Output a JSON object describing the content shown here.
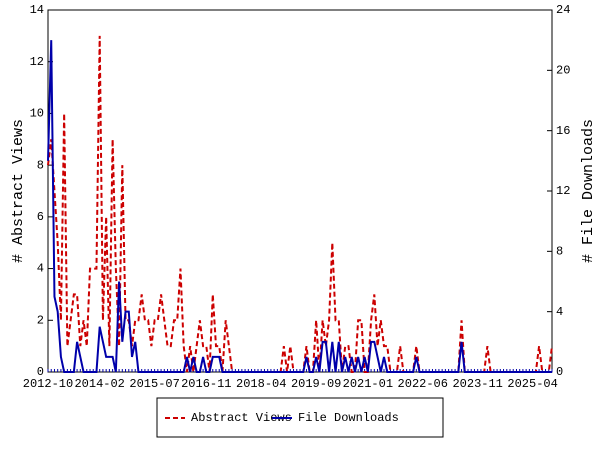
{
  "chart_data": {
    "type": "line",
    "y_label": "# Abstract Views",
    "y2_label": "# File Downloads",
    "categories": [
      "2012-10",
      null,
      null,
      null,
      null,
      null,
      null,
      null,
      null,
      null,
      null,
      null,
      null,
      null,
      null,
      null,
      "2014-02",
      null,
      null,
      null,
      null,
      null,
      null,
      null,
      null,
      null,
      null,
      null,
      null,
      null,
      null,
      null,
      null,
      "2015-07",
      null,
      null,
      null,
      null,
      null,
      null,
      null,
      null,
      null,
      null,
      null,
      null,
      null,
      null,
      null,
      "2016-11",
      null,
      null,
      null,
      null,
      null,
      null,
      null,
      null,
      null,
      null,
      null,
      null,
      null,
      null,
      null,
      null,
      "2018-04",
      null,
      null,
      null,
      null,
      null,
      null,
      null,
      null,
      null,
      null,
      null,
      null,
      null,
      null,
      null,
      null,
      "2019-09",
      null,
      null,
      null,
      null,
      null,
      null,
      null,
      null,
      null,
      null,
      null,
      null,
      null,
      null,
      null,
      "2021-01",
      null,
      null,
      null,
      null,
      null,
      null,
      null,
      null,
      null,
      null,
      null,
      null,
      null,
      null,
      null,
      null,
      "2022-06",
      null,
      null,
      null,
      null,
      null,
      null,
      null,
      null,
      null,
      null,
      null,
      null,
      null,
      null,
      null,
      null,
      "2023-11",
      null,
      null,
      null,
      null,
      null,
      null,
      null,
      null,
      null,
      null,
      null,
      null,
      null,
      null,
      null,
      null,
      "2025-04",
      null,
      null,
      null,
      null,
      null,
      null
    ],
    "series": [
      {
        "name": "Abstract Views",
        "color": "#cc0000",
        "dashed": true,
        "values": [
          8,
          9,
          7,
          5,
          2,
          10,
          1,
          2,
          3,
          3,
          1,
          2,
          1,
          4,
          4,
          4,
          13,
          2,
          6,
          1,
          9,
          4,
          1,
          8,
          2,
          2,
          1,
          2,
          2,
          3,
          2,
          2,
          1,
          2,
          2,
          3,
          2,
          1,
          1,
          2,
          2,
          4,
          1,
          0,
          1,
          0,
          1,
          2,
          1,
          1,
          0,
          3,
          1,
          1,
          0,
          2,
          1,
          0,
          0,
          0,
          0,
          0,
          0,
          0,
          0,
          0,
          0,
          0,
          0,
          0,
          0,
          0,
          0,
          1,
          0,
          1,
          0,
          0,
          0,
          0,
          1,
          0,
          0,
          2,
          0,
          2,
          1,
          2,
          5,
          2,
          2,
          0,
          1,
          1,
          0,
          0,
          2,
          2,
          0,
          0,
          2,
          3,
          1,
          2,
          1,
          1,
          0,
          0,
          0,
          1,
          0,
          0,
          0,
          0,
          1,
          0,
          0,
          0,
          0,
          0,
          0,
          0,
          0,
          0,
          0,
          0,
          0,
          0,
          2,
          0,
          0,
          0,
          0,
          0,
          0,
          0,
          1,
          0,
          0,
          0,
          0,
          0,
          0,
          0,
          0,
          0,
          0,
          0,
          0,
          0,
          0,
          0,
          1,
          0,
          0,
          0,
          1
        ]
      },
      {
        "name": "File Downloads",
        "color": "#0000aa",
        "axis": "y2",
        "values": [
          14,
          22,
          5,
          4,
          1,
          0,
          0,
          0,
          0,
          2,
          1,
          0,
          0,
          0,
          0,
          0,
          3,
          2,
          1,
          1,
          1,
          0,
          6,
          2,
          4,
          4,
          1,
          2,
          0,
          0,
          0,
          0,
          0,
          0,
          0,
          0,
          0,
          0,
          0,
          0,
          0,
          0,
          0,
          1,
          0,
          1,
          0,
          0,
          1,
          0,
          0,
          1,
          1,
          1,
          0,
          0,
          0,
          0,
          0,
          0,
          0,
          0,
          0,
          0,
          0,
          0,
          0,
          0,
          0,
          0,
          0,
          0,
          0,
          0,
          0,
          0,
          0,
          0,
          0,
          0,
          1,
          0,
          0,
          1,
          0,
          2,
          2,
          0,
          2,
          0,
          2,
          0,
          1,
          0,
          1,
          0,
          1,
          0,
          1,
          0,
          2,
          2,
          1,
          0,
          1,
          0,
          0,
          0,
          0,
          0,
          0,
          0,
          0,
          0,
          1,
          0,
          0,
          0,
          0,
          0,
          0,
          0,
          0,
          0,
          0,
          0,
          0,
          0,
          2,
          0,
          0,
          0,
          0,
          0,
          0,
          0,
          0,
          0,
          0,
          0,
          0,
          0,
          0,
          0,
          0,
          0,
          0,
          0,
          0,
          0,
          0,
          0,
          0,
          0,
          0,
          0,
          0
        ]
      }
    ],
    "ylim": [
      0,
      14
    ],
    "yticks": [
      0,
      2,
      4,
      6,
      8,
      10,
      12,
      14
    ],
    "y2lim": [
      0,
      24
    ],
    "y2ticks": [
      0,
      4,
      8,
      12,
      16,
      20,
      24
    ]
  }
}
